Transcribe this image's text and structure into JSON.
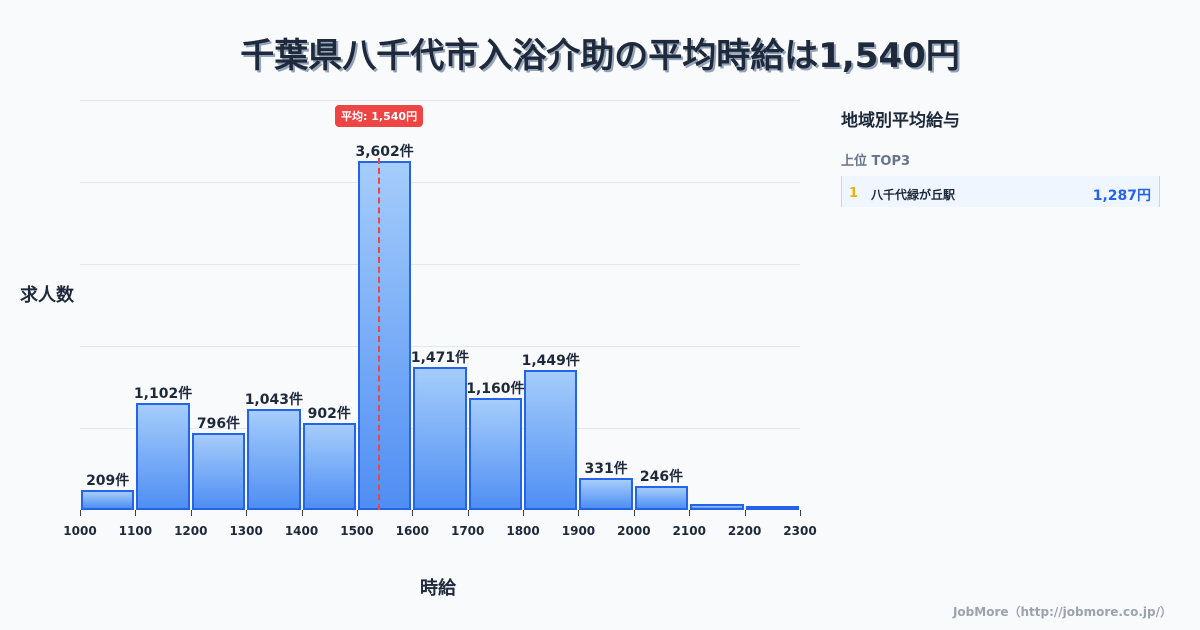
{
  "title": "千葉県八千代市入浴介助の平均時給は1,540円",
  "average_badge": "平均: 1,540円",
  "y_axis_label": "求人数",
  "x_axis_label": "時給",
  "sidebar": {
    "title": "地域別平均給与",
    "subtitle": "上位 TOP3",
    "ranking": [
      {
        "rank": "1",
        "name": "八千代緑が丘駅",
        "value": "1,287円"
      }
    ]
  },
  "footer": "JobMore（http://jobmore.co.jp/）",
  "colors": {
    "bar_fill_top": "#a5cdfb",
    "bar_fill_bottom": "#4f8ef3",
    "bar_border": "#2563eb",
    "average_line": "#ef4444",
    "rank_number": "#eab308",
    "rank_value": "#2563eb"
  },
  "chart_data": {
    "type": "bar",
    "title": "千葉県八千代市入浴介助の平均時給は1,540円",
    "xlabel": "時給",
    "ylabel": "求人数",
    "bin_edges": [
      1000,
      1100,
      1200,
      1300,
      1400,
      1500,
      1600,
      1700,
      1800,
      1900,
      2000,
      2100,
      2200,
      2300
    ],
    "categories": [
      "1000-1100",
      "1100-1200",
      "1200-1300",
      "1300-1400",
      "1400-1500",
      "1500-1600",
      "1600-1700",
      "1700-1800",
      "1800-1900",
      "1900-2000",
      "2000-2100",
      "2100-2200",
      "2200-2300"
    ],
    "values": [
      209,
      1102,
      796,
      1043,
      902,
      3602,
      1471,
      1160,
      1449,
      331,
      246,
      60,
      20
    ],
    "labels": [
      "209件",
      "1,102件",
      "796件",
      "1,043件",
      "902件",
      "3,602件",
      "1,471件",
      "1,160件",
      "1,449件",
      "331件",
      "246件",
      "",
      ""
    ],
    "average": 1540,
    "average_label": "平均: 1,540円",
    "ylim": [
      0,
      4230
    ],
    "xlim": [
      1000,
      2300
    ],
    "grid": true,
    "gridlines": 5
  }
}
